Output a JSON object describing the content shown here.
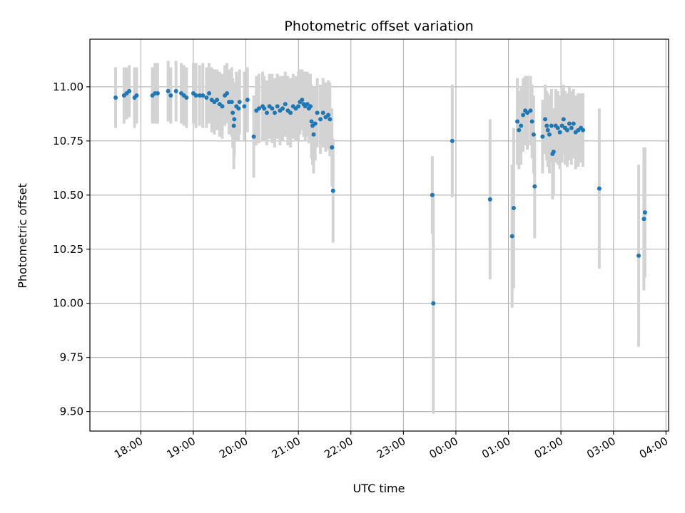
{
  "chart_data": {
    "type": "scatter",
    "title": "Photometric offset variation",
    "xlabel": "UTC time",
    "ylabel": "Photometric offset",
    "x_unit": "hours",
    "x_tick_values": [
      18,
      19,
      20,
      21,
      22,
      23,
      24,
      25,
      26,
      27,
      28
    ],
    "x_tick_labels": [
      "18:00",
      "19:00",
      "20:00",
      "21:00",
      "22:00",
      "23:00",
      "00:00",
      "01:00",
      "02:00",
      "03:00",
      "04:00"
    ],
    "xlim": [
      17.03,
      28.05
    ],
    "ylim": [
      9.41,
      11.22
    ],
    "y_ticks": [
      "9.50",
      "9.75",
      "10.00",
      "10.25",
      "10.50",
      "10.75",
      "11.00"
    ],
    "grid": true,
    "colors": {
      "point": "#1f77b4",
      "errorbar": "#d3d3d3",
      "grid": "#b0b0b0"
    },
    "points": [
      {
        "x": 17.52,
        "y": 10.95,
        "err": 0.14
      },
      {
        "x": 17.68,
        "y": 10.96,
        "err": 0.13
      },
      {
        "x": 17.73,
        "y": 10.97,
        "err": 0.12
      },
      {
        "x": 17.78,
        "y": 10.98,
        "err": 0.12
      },
      {
        "x": 17.88,
        "y": 10.95,
        "err": 0.14
      },
      {
        "x": 17.92,
        "y": 10.96,
        "err": 0.13
      },
      {
        "x": 18.22,
        "y": 10.96,
        "err": 0.13
      },
      {
        "x": 18.27,
        "y": 10.97,
        "err": 0.14
      },
      {
        "x": 18.32,
        "y": 10.97,
        "err": 0.14
      },
      {
        "x": 18.52,
        "y": 10.98,
        "err": 0.14
      },
      {
        "x": 18.57,
        "y": 10.96,
        "err": 0.13
      },
      {
        "x": 18.67,
        "y": 10.98,
        "err": 0.14
      },
      {
        "x": 18.77,
        "y": 10.97,
        "err": 0.14
      },
      {
        "x": 18.82,
        "y": 10.96,
        "err": 0.14
      },
      {
        "x": 18.87,
        "y": 10.95,
        "err": 0.14
      },
      {
        "x": 19.0,
        "y": 10.97,
        "err": 0.14
      },
      {
        "x": 19.05,
        "y": 10.96,
        "err": 0.15
      },
      {
        "x": 19.12,
        "y": 10.96,
        "err": 0.14
      },
      {
        "x": 19.18,
        "y": 10.96,
        "err": 0.15
      },
      {
        "x": 19.25,
        "y": 10.95,
        "err": 0.14
      },
      {
        "x": 19.3,
        "y": 10.97,
        "err": 0.14
      },
      {
        "x": 19.35,
        "y": 10.94,
        "err": 0.15
      },
      {
        "x": 19.4,
        "y": 10.93,
        "err": 0.15
      },
      {
        "x": 19.45,
        "y": 10.94,
        "err": 0.14
      },
      {
        "x": 19.5,
        "y": 10.92,
        "err": 0.15
      },
      {
        "x": 19.55,
        "y": 10.91,
        "err": 0.15
      },
      {
        "x": 19.6,
        "y": 10.96,
        "err": 0.14
      },
      {
        "x": 19.64,
        "y": 10.97,
        "err": 0.14
      },
      {
        "x": 19.68,
        "y": 10.93,
        "err": 0.15
      },
      {
        "x": 19.73,
        "y": 10.93,
        "err": 0.16
      },
      {
        "x": 19.75,
        "y": 10.88,
        "err": 0.16
      },
      {
        "x": 19.77,
        "y": 10.82,
        "err": 0.2
      },
      {
        "x": 19.78,
        "y": 10.85,
        "err": 0.17
      },
      {
        "x": 19.82,
        "y": 10.91,
        "err": 0.16
      },
      {
        "x": 19.86,
        "y": 10.9,
        "err": 0.15
      },
      {
        "x": 19.88,
        "y": 10.93,
        "err": 0.15
      },
      {
        "x": 19.97,
        "y": 10.91,
        "err": 0.16
      },
      {
        "x": 20.03,
        "y": 10.94,
        "err": 0.15
      },
      {
        "x": 20.15,
        "y": 10.77,
        "err": 0.19
      },
      {
        "x": 20.2,
        "y": 10.89,
        "err": 0.16
      },
      {
        "x": 20.25,
        "y": 10.9,
        "err": 0.16
      },
      {
        "x": 20.32,
        "y": 10.91,
        "err": 0.16
      },
      {
        "x": 20.35,
        "y": 10.9,
        "err": 0.15
      },
      {
        "x": 20.4,
        "y": 10.88,
        "err": 0.15
      },
      {
        "x": 20.45,
        "y": 10.91,
        "err": 0.15
      },
      {
        "x": 20.5,
        "y": 10.9,
        "err": 0.16
      },
      {
        "x": 20.55,
        "y": 10.88,
        "err": 0.16
      },
      {
        "x": 20.6,
        "y": 10.91,
        "err": 0.15
      },
      {
        "x": 20.65,
        "y": 10.89,
        "err": 0.16
      },
      {
        "x": 20.7,
        "y": 10.9,
        "err": 0.15
      },
      {
        "x": 20.75,
        "y": 10.92,
        "err": 0.15
      },
      {
        "x": 20.8,
        "y": 10.89,
        "err": 0.16
      },
      {
        "x": 20.85,
        "y": 10.88,
        "err": 0.16
      },
      {
        "x": 20.9,
        "y": 10.91,
        "err": 0.15
      },
      {
        "x": 20.95,
        "y": 10.9,
        "err": 0.15
      },
      {
        "x": 21.0,
        "y": 10.91,
        "err": 0.16
      },
      {
        "x": 21.03,
        "y": 10.93,
        "err": 0.15
      },
      {
        "x": 21.07,
        "y": 10.94,
        "err": 0.14
      },
      {
        "x": 21.1,
        "y": 10.92,
        "err": 0.15
      },
      {
        "x": 21.13,
        "y": 10.91,
        "err": 0.16
      },
      {
        "x": 21.17,
        "y": 10.92,
        "err": 0.15
      },
      {
        "x": 21.2,
        "y": 10.9,
        "err": 0.16
      },
      {
        "x": 21.23,
        "y": 10.91,
        "err": 0.15
      },
      {
        "x": 21.25,
        "y": 10.84,
        "err": 0.17
      },
      {
        "x": 21.27,
        "y": 10.82,
        "err": 0.18
      },
      {
        "x": 21.29,
        "y": 10.78,
        "err": 0.18
      },
      {
        "x": 21.32,
        "y": 10.83,
        "err": 0.17
      },
      {
        "x": 21.36,
        "y": 10.88,
        "err": 0.16
      },
      {
        "x": 21.42,
        "y": 10.85,
        "err": 0.16
      },
      {
        "x": 21.47,
        "y": 10.88,
        "err": 0.16
      },
      {
        "x": 21.52,
        "y": 10.86,
        "err": 0.16
      },
      {
        "x": 21.57,
        "y": 10.87,
        "err": 0.16
      },
      {
        "x": 21.6,
        "y": 10.85,
        "err": 0.17
      },
      {
        "x": 21.64,
        "y": 10.72,
        "err": 0.18
      },
      {
        "x": 21.66,
        "y": 10.52,
        "err": 0.24
      },
      {
        "x": 23.55,
        "y": 10.5,
        "err": 0.18
      },
      {
        "x": 23.57,
        "y": 10.0,
        "err": 0.51
      },
      {
        "x": 23.93,
        "y": 10.75,
        "err": 0.26
      },
      {
        "x": 24.65,
        "y": 10.48,
        "err": 0.37
      },
      {
        "x": 25.07,
        "y": 10.31,
        "err": 0.33
      },
      {
        "x": 25.1,
        "y": 10.44,
        "err": 0.37
      },
      {
        "x": 25.17,
        "y": 10.84,
        "err": 0.2
      },
      {
        "x": 25.2,
        "y": 10.8,
        "err": 0.18
      },
      {
        "x": 25.24,
        "y": 10.82,
        "err": 0.18
      },
      {
        "x": 25.28,
        "y": 10.87,
        "err": 0.17
      },
      {
        "x": 25.32,
        "y": 10.89,
        "err": 0.16
      },
      {
        "x": 25.36,
        "y": 10.88,
        "err": 0.17
      },
      {
        "x": 25.42,
        "y": 10.89,
        "err": 0.16
      },
      {
        "x": 25.45,
        "y": 10.84,
        "err": 0.17
      },
      {
        "x": 25.48,
        "y": 10.78,
        "err": 0.18
      },
      {
        "x": 25.5,
        "y": 10.54,
        "err": 0.24
      },
      {
        "x": 25.65,
        "y": 10.77,
        "err": 0.17
      },
      {
        "x": 25.7,
        "y": 10.85,
        "err": 0.16
      },
      {
        "x": 25.73,
        "y": 10.82,
        "err": 0.16
      },
      {
        "x": 25.75,
        "y": 10.8,
        "err": 0.17
      },
      {
        "x": 25.78,
        "y": 10.78,
        "err": 0.18
      },
      {
        "x": 25.82,
        "y": 10.82,
        "err": 0.17
      },
      {
        "x": 25.84,
        "y": 10.69,
        "err": 0.21
      },
      {
        "x": 25.86,
        "y": 10.7,
        "err": 0.2
      },
      {
        "x": 25.9,
        "y": 10.82,
        "err": 0.17
      },
      {
        "x": 25.94,
        "y": 10.81,
        "err": 0.17
      },
      {
        "x": 25.98,
        "y": 10.79,
        "err": 0.17
      },
      {
        "x": 26.02,
        "y": 10.82,
        "err": 0.17
      },
      {
        "x": 26.05,
        "y": 10.85,
        "err": 0.16
      },
      {
        "x": 26.08,
        "y": 10.81,
        "err": 0.17
      },
      {
        "x": 26.12,
        "y": 10.8,
        "err": 0.17
      },
      {
        "x": 26.16,
        "y": 10.83,
        "err": 0.17
      },
      {
        "x": 26.2,
        "y": 10.81,
        "err": 0.17
      },
      {
        "x": 26.24,
        "y": 10.83,
        "err": 0.16
      },
      {
        "x": 26.28,
        "y": 10.79,
        "err": 0.17
      },
      {
        "x": 26.33,
        "y": 10.8,
        "err": 0.17
      },
      {
        "x": 26.38,
        "y": 10.81,
        "err": 0.16
      },
      {
        "x": 26.42,
        "y": 10.8,
        "err": 0.17
      },
      {
        "x": 26.73,
        "y": 10.53,
        "err": 0.37
      },
      {
        "x": 27.48,
        "y": 10.22,
        "err": 0.42
      },
      {
        "x": 27.58,
        "y": 10.39,
        "err": 0.33
      },
      {
        "x": 27.6,
        "y": 10.42,
        "err": 0.3
      }
    ]
  }
}
